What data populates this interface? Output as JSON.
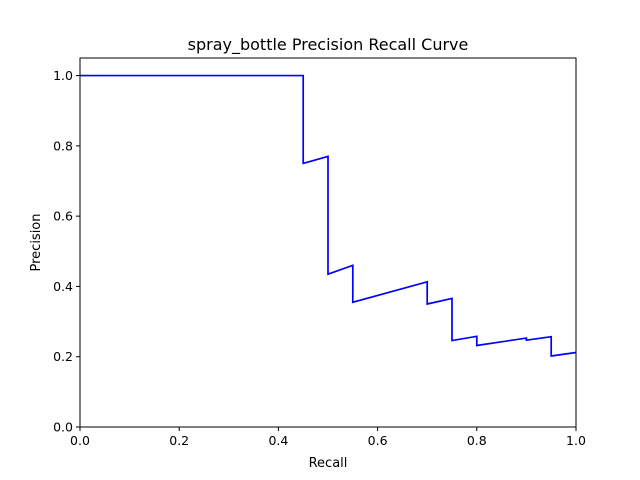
{
  "chart_data": {
    "type": "line",
    "title": "spray_bottle Precision Recall Curve",
    "xlabel": "Recall",
    "ylabel": "Precision",
    "xlim": [
      0,
      1
    ],
    "ylim": [
      0,
      1.05
    ],
    "x_ticks": [
      "0.0",
      "0.2",
      "0.4",
      "0.6",
      "0.8",
      "1.0"
    ],
    "y_ticks": [
      "0.0",
      "0.2",
      "0.4",
      "0.6",
      "0.8",
      "1.0"
    ],
    "grid": false,
    "line_color": "#0000ff",
    "series": [
      {
        "x": [
          0,
          0.45,
          0.45,
          0.5,
          0.5,
          0.55,
          0.55,
          0.7,
          0.7,
          0.75,
          0.75,
          0.8,
          0.8,
          0.9,
          0.9,
          0.95,
          0.95,
          1.0
        ],
        "y": [
          1.0,
          1.0,
          0.75,
          0.77,
          0.435,
          0.46,
          0.355,
          0.413,
          0.35,
          0.366,
          0.246,
          0.258,
          0.232,
          0.253,
          0.247,
          0.257,
          0.202,
          0.212
        ]
      }
    ]
  }
}
